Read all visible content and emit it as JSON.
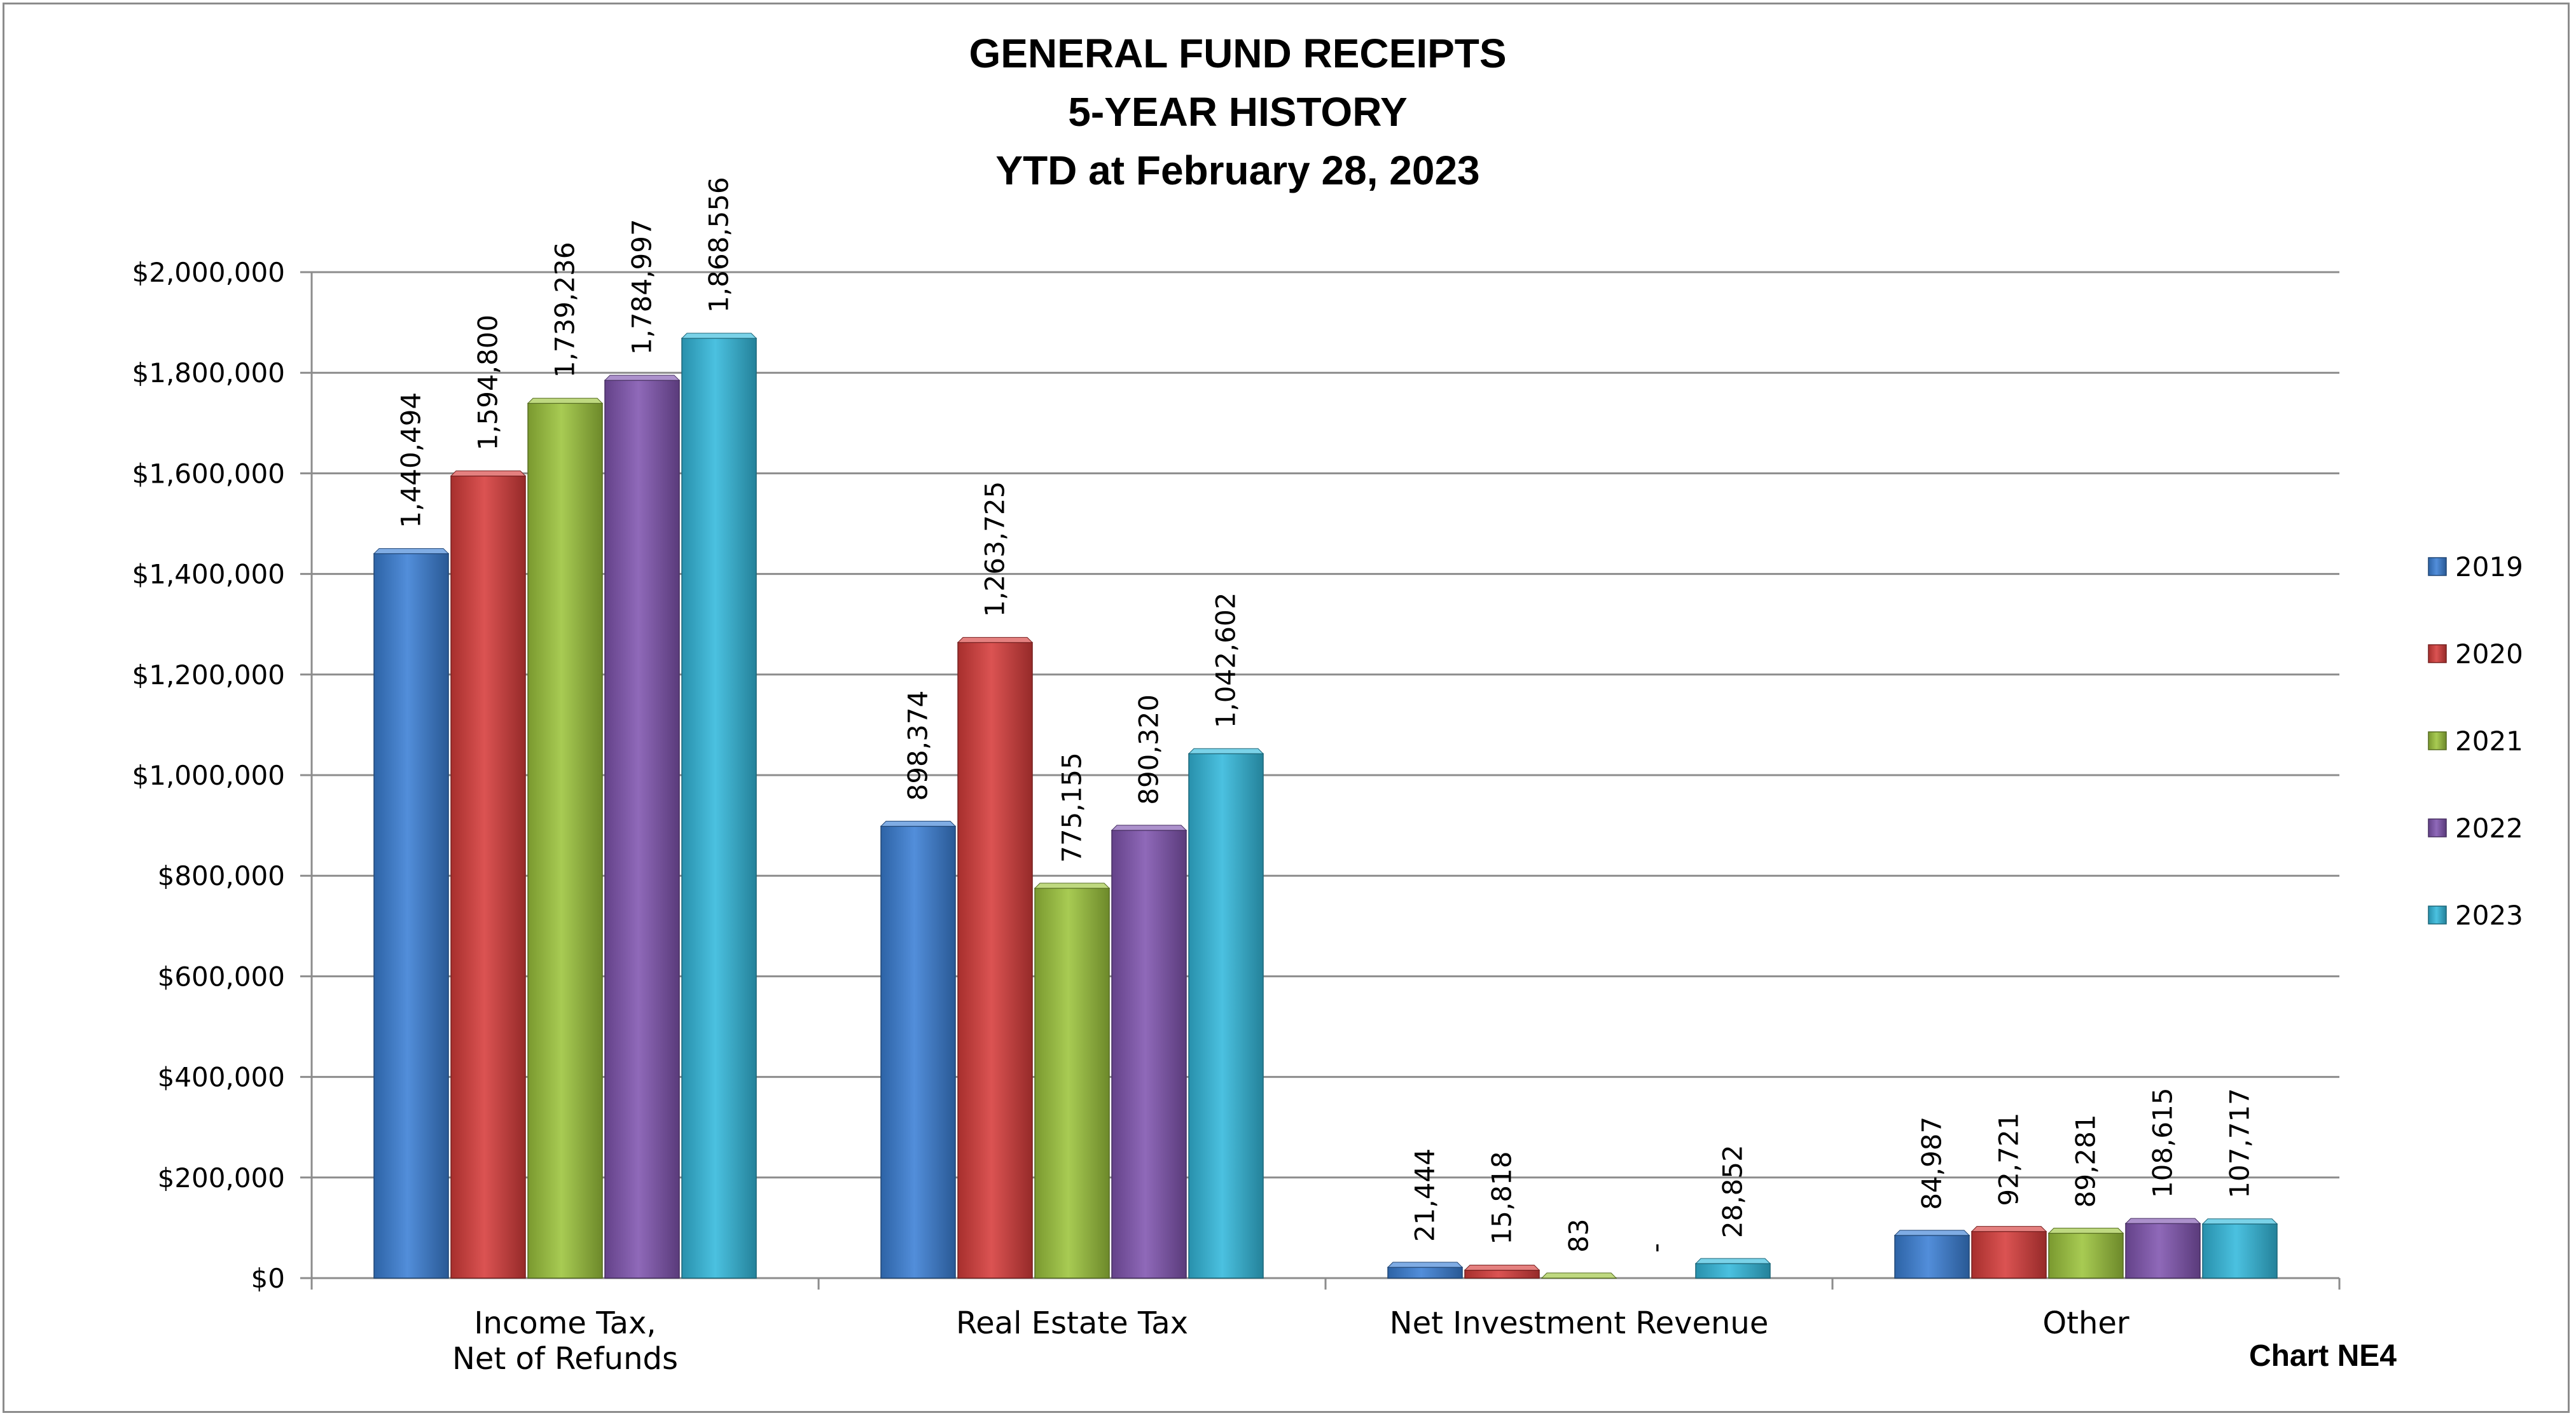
{
  "chart_data": {
    "type": "bar",
    "title_lines": [
      "GENERAL FUND RECEIPTS",
      "5-YEAR HISTORY",
      "YTD at February 28, 2023"
    ],
    "categories": [
      [
        "Income Tax,",
        "Net of Refunds"
      ],
      [
        "Real Estate Tax"
      ],
      [
        "Net Investment Revenue"
      ],
      [
        "Other"
      ]
    ],
    "series": [
      {
        "name": "2019",
        "color": "#3a7fd5",
        "values": [
          1440494,
          898374,
          21444,
          84987
        ],
        "labels": [
          "1,440,494",
          "898,374",
          "21,444",
          "84,987"
        ]
      },
      {
        "name": "2020",
        "color": "#d63c3a",
        "values": [
          1594800,
          1263725,
          15818,
          92721
        ],
        "labels": [
          "1,594,800",
          "1,263,725",
          "15,818",
          "92,721"
        ]
      },
      {
        "name": "2021",
        "color": "#9cc43c",
        "values": [
          1739236,
          775155,
          83,
          89281
        ],
        "labels": [
          "1,739,236",
          "775,155",
          "83",
          "89,281"
        ]
      },
      {
        "name": "2022",
        "color": "#8055b0",
        "values": [
          1784997,
          890320,
          0,
          108615
        ],
        "labels": [
          "1,784,997",
          "890,320",
          "-",
          "108,615"
        ]
      },
      {
        "name": "2023",
        "color": "#33b9dc",
        "values": [
          1868556,
          1042602,
          28852,
          107717
        ],
        "labels": [
          "1,868,556",
          "1,042,602",
          "28,852",
          "107,717"
        ]
      }
    ],
    "ylim": [
      0,
      2000000
    ],
    "yticks": [
      0,
      200000,
      400000,
      600000,
      800000,
      1000000,
      1200000,
      1400000,
      1600000,
      1800000,
      2000000
    ],
    "ytick_labels": [
      "$0",
      "$200,000",
      "$400,000",
      "$600,000",
      "$800,000",
      "$1,000,000",
      "$1,200,000",
      "$1,400,000",
      "$1,600,000",
      "$1,800,000",
      "$2,000,000"
    ],
    "grid": true,
    "legend_position": "right",
    "footer": "Chart NE4"
  }
}
